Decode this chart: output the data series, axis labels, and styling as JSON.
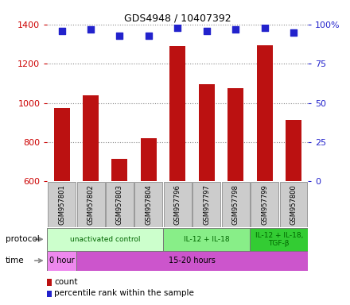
{
  "title": "GDS4948 / 10407392",
  "samples": [
    "GSM957801",
    "GSM957802",
    "GSM957803",
    "GSM957804",
    "GSM957796",
    "GSM957797",
    "GSM957798",
    "GSM957799",
    "GSM957800"
  ],
  "counts": [
    975,
    1040,
    715,
    820,
    1290,
    1095,
    1075,
    1295,
    915
  ],
  "percentile_ranks": [
    96,
    97,
    93,
    93,
    98,
    96,
    97,
    98,
    95
  ],
  "ylim": [
    600,
    1400
  ],
  "yticks": [
    600,
    800,
    1000,
    1200,
    1400
  ],
  "y2lim": [
    0,
    100
  ],
  "y2ticks": [
    0,
    25,
    50,
    75,
    100
  ],
  "y2labels": [
    "0",
    "25",
    "50",
    "75",
    "100%"
  ],
  "bar_color": "#bb1111",
  "dot_color": "#2222cc",
  "bar_width": 0.55,
  "protocol_groups": [
    {
      "label": "unactivated control",
      "start": 0,
      "end": 4,
      "color": "#ccffcc"
    },
    {
      "label": "IL-12 + IL-18",
      "start": 4,
      "end": 7,
      "color": "#88ee88"
    },
    {
      "label": "IL-12 + IL-18,\nTGF-β",
      "start": 7,
      "end": 9,
      "color": "#33cc33"
    }
  ],
  "time_groups": [
    {
      "label": "0 hour",
      "start": 0,
      "end": 1,
      "color": "#ee88ee"
    },
    {
      "label": "15-20 hours",
      "start": 1,
      "end": 9,
      "color": "#cc55cc"
    }
  ],
  "left_label_color": "#cc0000",
  "right_label_color": "#2222cc",
  "bg_color": "#ffffff",
  "grid_color": "#888888",
  "sample_box_color": "#cccccc",
  "sample_box_edge": "#999999",
  "proto_arrow_color": "#888888",
  "time_arrow_color": "#888888"
}
